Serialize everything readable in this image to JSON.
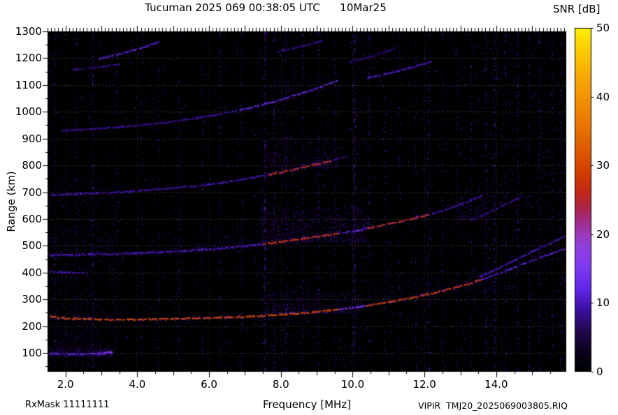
{
  "chart_data": {
    "type": "heatmap",
    "title": "Tucuman 2025 069 00:38:05 UTC      10Mar25",
    "xlabel": "Frequency [MHz]",
    "ylabel": "Range (km)",
    "xlim": [
      1.5,
      15.95
    ],
    "ylim": [
      30,
      1300
    ],
    "x_ticks": [
      {
        "f": 2,
        "label": "2.0"
      },
      {
        "f": 4,
        "label": "4.0"
      },
      {
        "f": 6,
        "label": "6.0"
      },
      {
        "f": 8,
        "label": "8.0"
      },
      {
        "f": 10,
        "label": "10.0"
      },
      {
        "f": 12,
        "label": "12.0"
      },
      {
        "f": 14,
        "label": "14.0"
      }
    ],
    "y_ticks": [
      {
        "km": 100,
        "label": "100"
      },
      {
        "km": 200,
        "label": "200"
      },
      {
        "km": 300,
        "label": "300"
      },
      {
        "km": 400,
        "label": "400"
      },
      {
        "km": 500,
        "label": "500"
      },
      {
        "km": 600,
        "label": "600"
      },
      {
        "km": 700,
        "label": "700"
      },
      {
        "km": 800,
        "label": "800"
      },
      {
        "km": 900,
        "label": "900"
      },
      {
        "km": 1000,
        "label": "1000"
      },
      {
        "km": 1100,
        "label": "1100"
      },
      {
        "km": 1200,
        "label": "1200"
      },
      {
        "km": 1300,
        "label": "1300"
      }
    ],
    "colorbar": {
      "label": "SNR [dB]",
      "min": 0,
      "max": 50,
      "ticks": [
        {
          "v": 50,
          "label": "50"
        },
        {
          "v": 40,
          "label": "40"
        },
        {
          "v": 30,
          "label": "30"
        },
        {
          "v": 20,
          "label": "20"
        },
        {
          "v": 10,
          "label": "10"
        },
        {
          "v": 0,
          "label": "0"
        }
      ],
      "stops": [
        [
          0,
          "#000000"
        ],
        [
          3,
          "#0c0220"
        ],
        [
          6,
          "#220850"
        ],
        [
          9,
          "#3a10a0"
        ],
        [
          12,
          "#6026e8"
        ],
        [
          15,
          "#7c3af2"
        ],
        [
          18,
          "#9140e0"
        ],
        [
          20,
          "#9c3ab8"
        ],
        [
          22,
          "#a22c84"
        ],
        [
          24,
          "#ae2444"
        ],
        [
          26,
          "#c02818"
        ],
        [
          29,
          "#d23e00"
        ],
        [
          33,
          "#e06000"
        ],
        [
          37,
          "#ec7e00"
        ],
        [
          41,
          "#f49c00"
        ],
        [
          45,
          "#fabb00"
        ],
        [
          48,
          "#fdd900"
        ],
        [
          50,
          "#fff200"
        ]
      ]
    },
    "annotations": {
      "rx_mask": "RxMask 11111111",
      "file_id": "VIPIR  TMJ20_2025069003805.RIQ"
    },
    "traces": [
      {
        "name": "F2-first-hop-O",
        "points": [
          [
            1.55,
            238
          ],
          [
            2.0,
            231
          ],
          [
            3.0,
            227
          ],
          [
            4.0,
            227
          ],
          [
            5.0,
            229
          ],
          [
            6.0,
            232
          ],
          [
            7.0,
            237
          ],
          [
            7.8,
            243
          ],
          [
            8.6,
            251
          ],
          [
            9.3,
            260
          ],
          [
            10.0,
            271
          ],
          [
            10.6,
            283
          ],
          [
            11.2,
            297
          ],
          [
            11.8,
            312
          ],
          [
            12.3,
            327
          ],
          [
            12.8,
            344
          ],
          [
            13.3,
            363
          ],
          [
            13.8,
            386
          ],
          [
            14.3,
            411
          ],
          [
            14.8,
            437
          ],
          [
            15.3,
            462
          ],
          [
            15.9,
            490
          ]
        ],
        "segments": [
          {
            "f0": 1.55,
            "f1": 9.6,
            "v": 30,
            "w": 3
          },
          {
            "f0": 9.6,
            "f1": 10.35,
            "v": 15,
            "w": 2.5
          },
          {
            "f0": 10.35,
            "f1": 12.5,
            "v": 29,
            "w": 3
          },
          {
            "f0": 12.5,
            "f1": 13.6,
            "v": 27,
            "w": 3
          },
          {
            "f0": 13.6,
            "f1": 15.9,
            "v": 12,
            "w": 2.2
          }
        ]
      },
      {
        "name": "F2-first-hop-X",
        "points": [
          [
            13.5,
            385
          ],
          [
            14.0,
            415
          ],
          [
            14.5,
            448
          ],
          [
            15.0,
            480
          ],
          [
            15.5,
            512
          ],
          [
            15.9,
            538
          ]
        ],
        "segments": [
          {
            "f0": 13.5,
            "f1": 15.9,
            "v": 11,
            "w": 2
          }
        ]
      },
      {
        "name": "second-hop",
        "points": [
          [
            1.55,
            466
          ],
          [
            2.5,
            469
          ],
          [
            3.5,
            472
          ],
          [
            4.5,
            477
          ],
          [
            5.5,
            484
          ],
          [
            6.5,
            494
          ],
          [
            7.3,
            505
          ],
          [
            8.0,
            517
          ],
          [
            8.7,
            530
          ],
          [
            9.4,
            544
          ],
          [
            10.0,
            557
          ],
          [
            10.6,
            572
          ],
          [
            11.2,
            589
          ],
          [
            11.8,
            607
          ],
          [
            12.3,
            625
          ],
          [
            12.8,
            646
          ],
          [
            13.2,
            667
          ],
          [
            13.6,
            690
          ]
        ],
        "segments": [
          {
            "f0": 1.55,
            "f1": 7.5,
            "v": 11,
            "w": 3
          },
          {
            "f0": 7.5,
            "f1": 9.6,
            "v": 27,
            "w": 3
          },
          {
            "f0": 9.6,
            "f1": 10.4,
            "v": 13,
            "w": 3
          },
          {
            "f0": 10.4,
            "f1": 12.1,
            "v": 26,
            "w": 3
          },
          {
            "f0": 12.1,
            "f1": 13.6,
            "v": 10,
            "w": 2.2
          }
        ]
      },
      {
        "name": "second-hop-X-tail",
        "points": [
          [
            13.3,
            598
          ],
          [
            13.8,
            628
          ],
          [
            14.3,
            660
          ],
          [
            14.7,
            685
          ]
        ],
        "segments": [
          {
            "f0": 13.3,
            "f1": 14.7,
            "v": 9,
            "w": 2
          }
        ]
      },
      {
        "name": "third-hop",
        "points": [
          [
            1.6,
            692
          ],
          [
            2.5,
            696
          ],
          [
            3.5,
            702
          ],
          [
            4.5,
            711
          ],
          [
            5.5,
            723
          ],
          [
            6.3,
            736
          ],
          [
            7.0,
            751
          ],
          [
            7.7,
            768
          ],
          [
            8.3,
            785
          ],
          [
            8.9,
            803
          ],
          [
            9.4,
            820
          ],
          [
            9.9,
            838
          ]
        ],
        "segments": [
          {
            "f0": 1.6,
            "f1": 7.6,
            "v": 10,
            "w": 2.6
          },
          {
            "f0": 7.6,
            "f1": 9.4,
            "v": 25,
            "w": 3
          },
          {
            "f0": 9.4,
            "f1": 9.9,
            "v": 8,
            "w": 2
          }
        ]
      },
      {
        "name": "fourth-hop",
        "points": [
          [
            1.9,
            932
          ],
          [
            2.8,
            938
          ],
          [
            3.8,
            948
          ],
          [
            4.8,
            962
          ],
          [
            5.7,
            979
          ],
          [
            6.5,
            998
          ],
          [
            7.2,
            1019
          ],
          [
            7.9,
            1043
          ],
          [
            8.5,
            1068
          ],
          [
            9.1,
            1095
          ],
          [
            9.6,
            1120
          ]
        ],
        "segments": [
          {
            "f0": 1.9,
            "f1": 6.8,
            "v": 9,
            "w": 2.2
          },
          {
            "f0": 6.8,
            "f1": 9.6,
            "v": 13,
            "w": 2.6
          }
        ]
      },
      {
        "name": "fourth-hop-ext",
        "points": [
          [
            10.4,
            1128
          ],
          [
            11.3,
            1155
          ],
          [
            12.2,
            1190
          ]
        ],
        "segments": [
          {
            "f0": 10.4,
            "f1": 12.2,
            "v": 11,
            "w": 2.2
          }
        ]
      },
      {
        "name": "fifth-hop-a",
        "points": [
          [
            2.2,
            1158
          ],
          [
            2.9,
            1168
          ],
          [
            3.5,
            1180
          ]
        ],
        "segments": [
          {
            "f0": 2.2,
            "f1": 3.5,
            "v": 8,
            "w": 2
          }
        ]
      },
      {
        "name": "fifth-hop-b",
        "points": [
          [
            2.9,
            1198
          ],
          [
            3.5,
            1218
          ],
          [
            4.1,
            1240
          ],
          [
            4.6,
            1262
          ]
        ],
        "segments": [
          {
            "f0": 2.9,
            "f1": 4.6,
            "v": 12,
            "w": 2.4
          }
        ]
      },
      {
        "name": "fifth-hop-c",
        "points": [
          [
            7.9,
            1225
          ],
          [
            8.6,
            1248
          ],
          [
            9.2,
            1268
          ]
        ],
        "segments": [
          {
            "f0": 7.9,
            "f1": 9.2,
            "v": 8,
            "w": 2
          }
        ]
      },
      {
        "name": "fifth-hop-d",
        "points": [
          [
            9.9,
            1185
          ],
          [
            10.7,
            1215
          ],
          [
            11.2,
            1240
          ]
        ],
        "segments": [
          {
            "f0": 9.9,
            "f1": 11.2,
            "v": 7,
            "w": 2
          }
        ]
      },
      {
        "name": "sporadic-E",
        "points": [
          [
            1.55,
            100
          ],
          [
            2.3,
            97
          ],
          [
            3.0,
            101
          ],
          [
            3.3,
            104
          ]
        ],
        "segments": [
          {
            "f0": 1.55,
            "f1": 3.3,
            "v": 13,
            "w": 2.6
          }
        ]
      },
      {
        "name": "sporadic-E-bright",
        "points": [
          [
            2.85,
            100
          ],
          [
            3.3,
            105
          ]
        ],
        "segments": [
          {
            "f0": 2.85,
            "f1": 3.3,
            "v": 17,
            "w": 3
          }
        ]
      },
      {
        "name": "low-left-echo",
        "points": [
          [
            1.55,
            406
          ],
          [
            2.1,
            402
          ],
          [
            2.6,
            400
          ]
        ],
        "segments": [
          {
            "f0": 1.55,
            "f1": 2.6,
            "v": 10,
            "w": 2
          }
        ]
      }
    ],
    "clouds": [
      {
        "f0": 7.5,
        "f1": 10.2,
        "r0": 248,
        "r1": 335,
        "n": 900,
        "v": 12
      },
      {
        "f0": 10.4,
        "f1": 12.4,
        "r0": 305,
        "r1": 385,
        "n": 320,
        "v": 10
      },
      {
        "f0": 7.4,
        "f1": 10.4,
        "r0": 515,
        "r1": 645,
        "n": 1700,
        "v": 13
      },
      {
        "f0": 5.5,
        "f1": 7.4,
        "r0": 490,
        "r1": 575,
        "n": 380,
        "v": 10
      },
      {
        "f0": 1.55,
        "f1": 3.3,
        "r0": 472,
        "r1": 565,
        "n": 320,
        "v": 10
      },
      {
        "f0": 7.5,
        "f1": 9.6,
        "r0": 790,
        "r1": 905,
        "n": 750,
        "v": 12
      },
      {
        "f0": 1.6,
        "f1": 3.0,
        "r0": 698,
        "r1": 765,
        "n": 160,
        "v": 8
      },
      {
        "f0": 1.55,
        "f1": 3.3,
        "r0": 88,
        "r1": 118,
        "n": 520,
        "v": 14
      },
      {
        "f0": 1.7,
        "f1": 3.0,
        "r0": 118,
        "r1": 190,
        "n": 330,
        "v": 9
      },
      {
        "f0": 12.9,
        "f1": 13.8,
        "r0": 600,
        "r1": 685,
        "n": 300,
        "v": 11
      },
      {
        "f0": 7.6,
        "f1": 9.4,
        "r0": 1075,
        "r1": 1145,
        "n": 220,
        "v": 9
      },
      {
        "f0": 1.55,
        "f1": 2.9,
        "r0": 200,
        "r1": 430,
        "n": 260,
        "v": 7
      },
      {
        "f0": 13.1,
        "f1": 14.0,
        "r0": 330,
        "r1": 420,
        "n": 200,
        "v": 9
      }
    ],
    "rfi_columns": [
      [
        1.7,
        0.5
      ],
      [
        2.3,
        0.4
      ],
      [
        2.75,
        0.55
      ],
      [
        3.4,
        0.3
      ],
      [
        4.1,
        0.35
      ],
      [
        4.6,
        0.3
      ],
      [
        5.15,
        0.5
      ],
      [
        5.8,
        0.3
      ],
      [
        6.3,
        0.4
      ],
      [
        6.9,
        0.35
      ],
      [
        7.55,
        0.9
      ],
      [
        7.8,
        0.5
      ],
      [
        8.15,
        0.45
      ],
      [
        8.6,
        0.4
      ],
      [
        9.05,
        0.5
      ],
      [
        9.5,
        0.35
      ],
      [
        10.05,
        1.0
      ],
      [
        10.45,
        0.5
      ],
      [
        10.9,
        0.4
      ],
      [
        11.3,
        0.35
      ],
      [
        11.75,
        0.45
      ],
      [
        12.1,
        0.6
      ],
      [
        12.5,
        0.4
      ],
      [
        12.9,
        0.35
      ],
      [
        13.3,
        0.4
      ],
      [
        13.7,
        0.55
      ],
      [
        13.95,
        0.7
      ],
      [
        14.25,
        0.5
      ],
      [
        14.6,
        0.6
      ],
      [
        14.9,
        0.55
      ],
      [
        15.2,
        0.6
      ],
      [
        15.55,
        0.5
      ],
      [
        15.8,
        0.45
      ]
    ],
    "noise": {
      "base_density": 0.022,
      "bands": [
        {
          "f0": 1.55,
          "f1": 3.6,
          "r0": 40,
          "r1": 700,
          "m": 1.9
        },
        {
          "f0": 7.3,
          "f1": 8.7,
          "r0": 30,
          "r1": 1300,
          "m": 1.8
        },
        {
          "f0": 9.9,
          "f1": 10.35,
          "r0": 30,
          "r1": 1300,
          "m": 1.7
        },
        {
          "f0": 13.4,
          "f1": 15.95,
          "r0": 200,
          "r1": 1300,
          "m": 1.6
        },
        {
          "f0": 11.9,
          "f1": 12.35,
          "r0": 30,
          "r1": 1300,
          "m": 1.35
        }
      ]
    }
  }
}
